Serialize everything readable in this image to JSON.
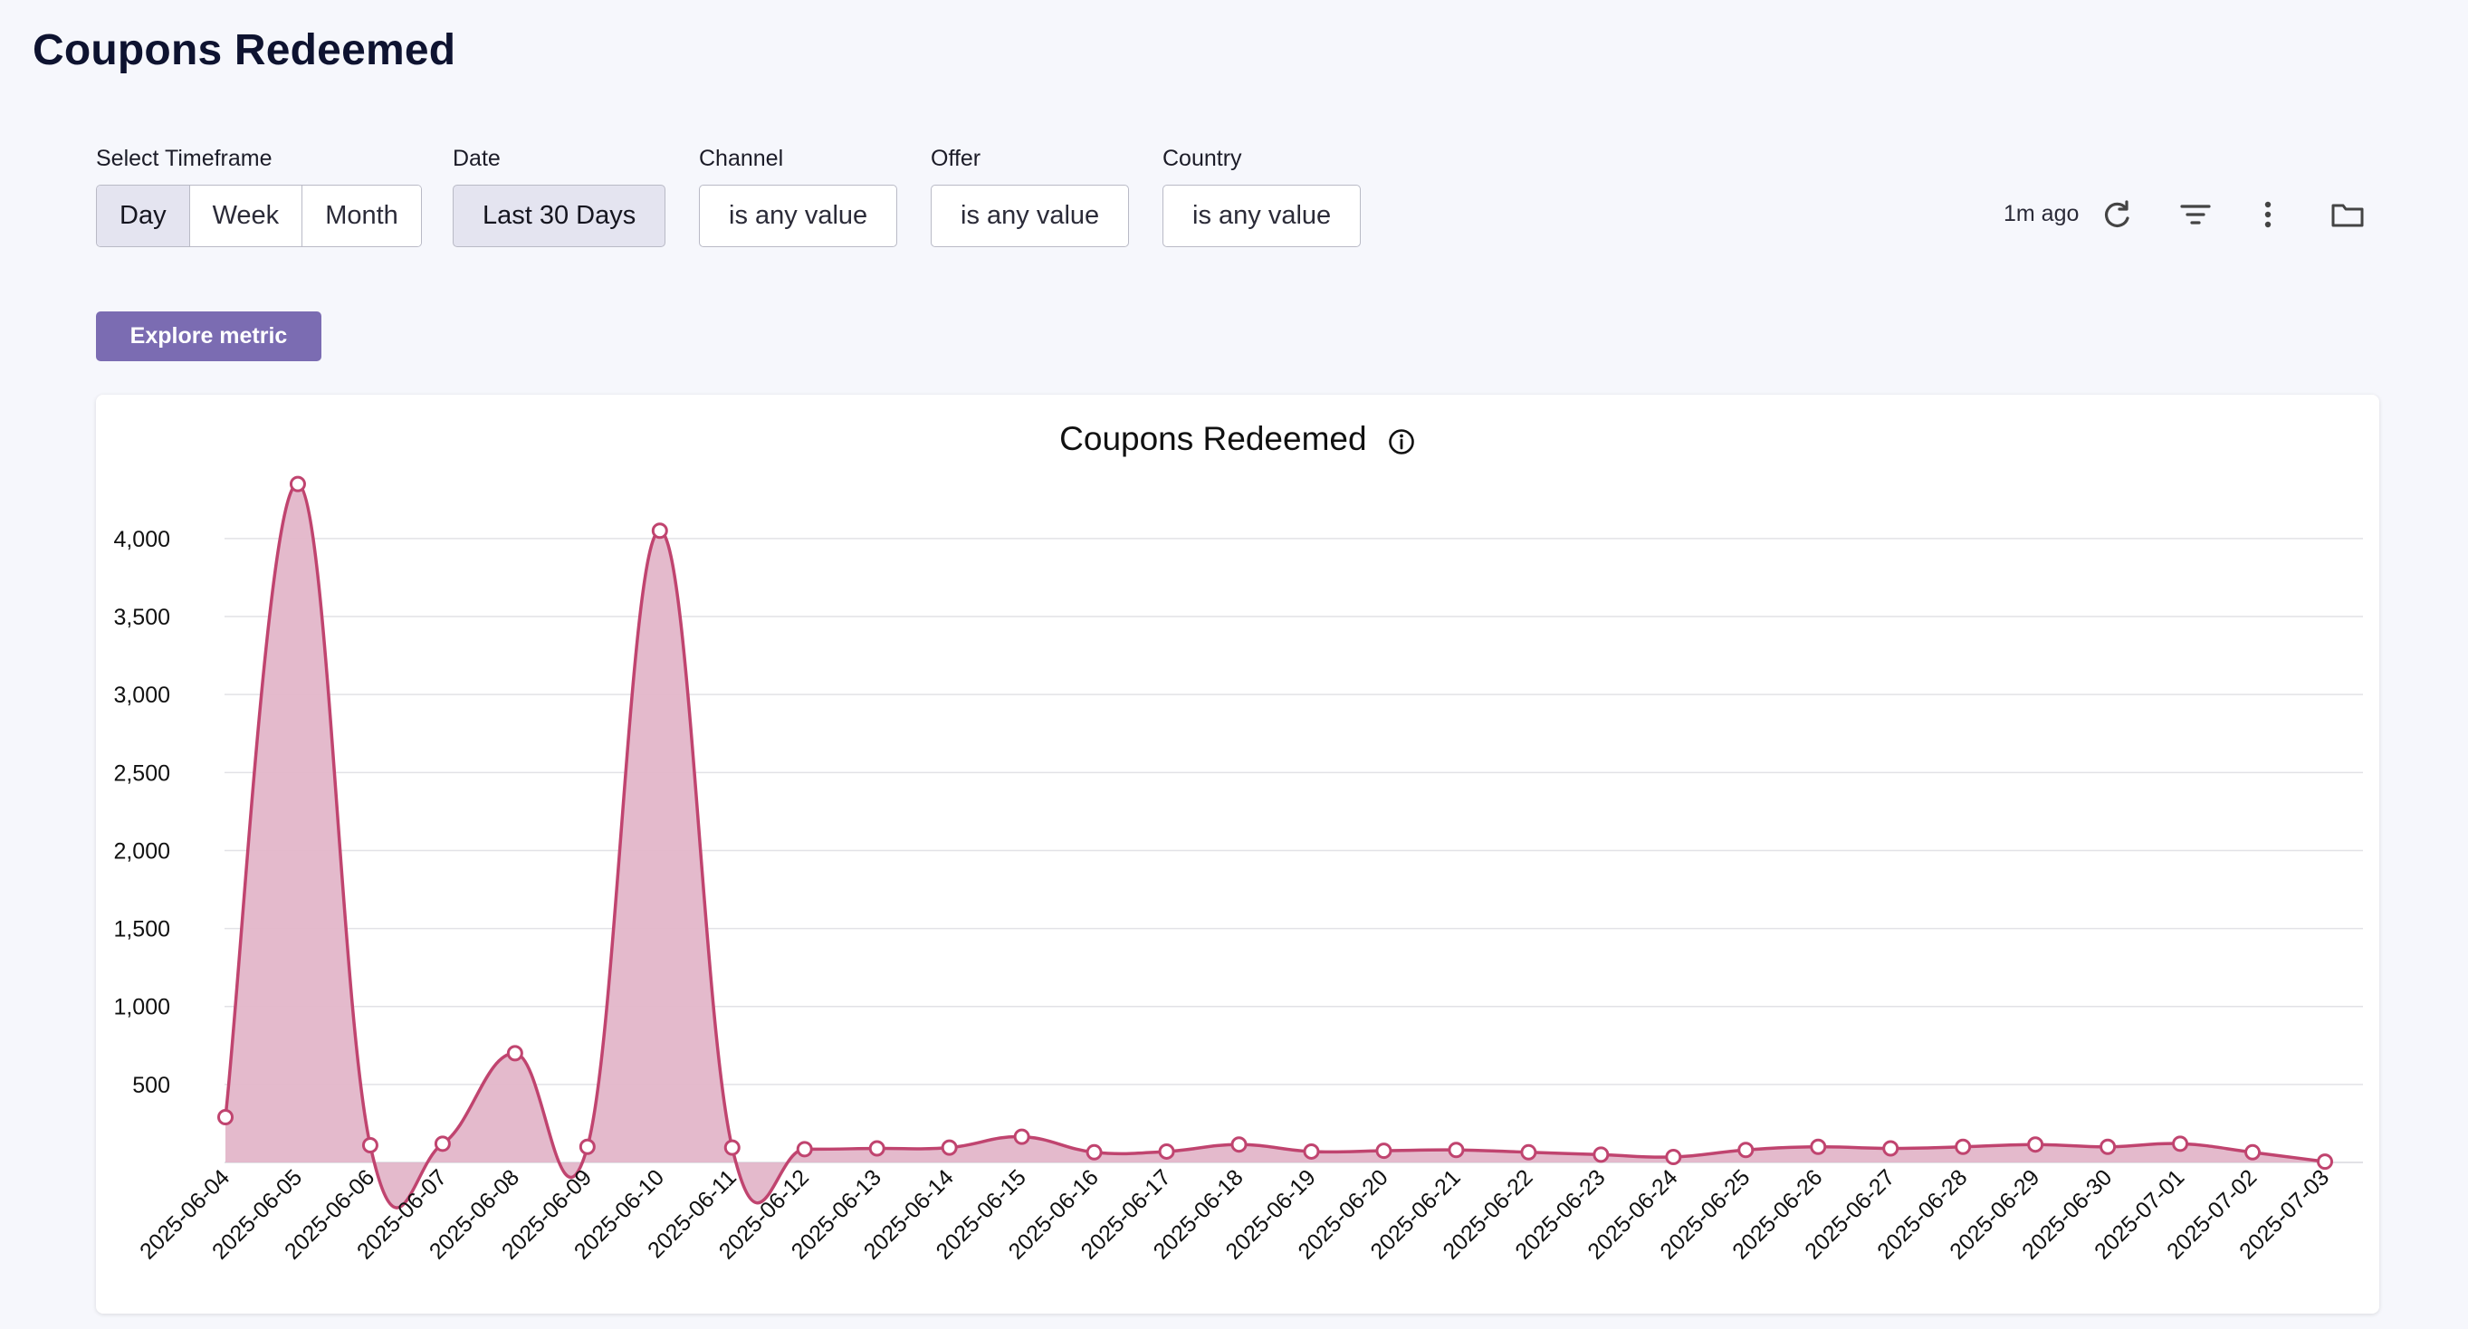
{
  "page": {
    "title": "Coupons Redeemed"
  },
  "filters": {
    "timeframe": {
      "label": "Select Timeframe",
      "options": [
        "Day",
        "Week",
        "Month"
      ],
      "selected": "Day"
    },
    "date": {
      "label": "Date",
      "value": "Last 30 Days"
    },
    "channel": {
      "label": "Channel",
      "value": "is any value"
    },
    "offer": {
      "label": "Offer",
      "value": "is any value"
    },
    "country": {
      "label": "Country",
      "value": "is any value"
    }
  },
  "toolbar": {
    "updated": "1m ago",
    "icons": [
      "refresh-icon",
      "filter-icon",
      "more-vertical-icon",
      "folder-icon"
    ]
  },
  "explore_button": {
    "label": "Explore metric"
  },
  "colors": {
    "accent": "#7b6cb2",
    "line": "#c0446f",
    "fill": "#e3b6c9"
  },
  "chart_data": {
    "type": "area",
    "title": "Coupons Redeemed",
    "xlabel": "",
    "ylabel": "",
    "ylim": [
      0,
      4400
    ],
    "yticks": [
      500,
      1000,
      1500,
      2000,
      2500,
      3000,
      3500,
      4000
    ],
    "ytick_labels": [
      "500",
      "1,000",
      "1,500",
      "2,000",
      "2,500",
      "3,000",
      "3,500",
      "4,000"
    ],
    "grid": true,
    "categories": [
      "2025-06-04",
      "2025-06-05",
      "2025-06-06",
      "2025-06-07",
      "2025-06-08",
      "2025-06-09",
      "2025-06-10",
      "2025-06-11",
      "2025-06-12",
      "2025-06-13",
      "2025-06-14",
      "2025-06-15",
      "2025-06-16",
      "2025-06-17",
      "2025-06-18",
      "2025-06-19",
      "2025-06-20",
      "2025-06-21",
      "2025-06-22",
      "2025-06-23",
      "2025-06-24",
      "2025-06-25",
      "2025-06-26",
      "2025-06-27",
      "2025-06-28",
      "2025-06-29",
      "2025-06-30",
      "2025-07-01",
      "2025-07-02",
      "2025-07-03"
    ],
    "series": [
      {
        "name": "Coupons Redeemed",
        "values": [
          290,
          4350,
          110,
          120,
          700,
          100,
          4050,
          95,
          85,
          90,
          95,
          165,
          65,
          70,
          115,
          70,
          75,
          80,
          65,
          50,
          35,
          80,
          100,
          90,
          100,
          115,
          100,
          120,
          65,
          5
        ]
      }
    ]
  }
}
